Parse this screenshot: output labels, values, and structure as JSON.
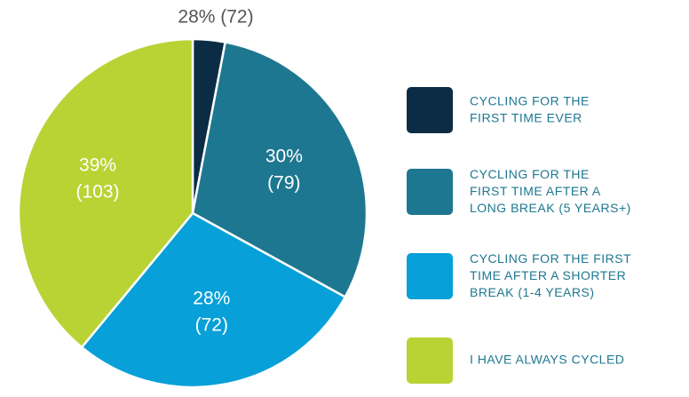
{
  "chart_data": {
    "type": "pie",
    "annotation": "28% (72)",
    "categories": [
      "CYCLING FOR THE\nFIRST TIME EVER",
      "CYCLING FOR THE\nFIRST TIME AFTER A\nLONG BREAK (5 YEARS+)",
      "CYCLING FOR THE FIRST\nTIME AFTER A SHORTER\nBREAK (1-4 YEARS)",
      "I HAVE ALWAYS CYCLED"
    ],
    "values": [
      3,
      30,
      28,
      39
    ],
    "value_labels": [
      null,
      "30%\n(79)",
      "28%\n(72)",
      "39%\n(103)"
    ],
    "colors": [
      "#0b2c44",
      "#1e7790",
      "#07a0d8",
      "#b9d335"
    ],
    "legend": "right"
  }
}
